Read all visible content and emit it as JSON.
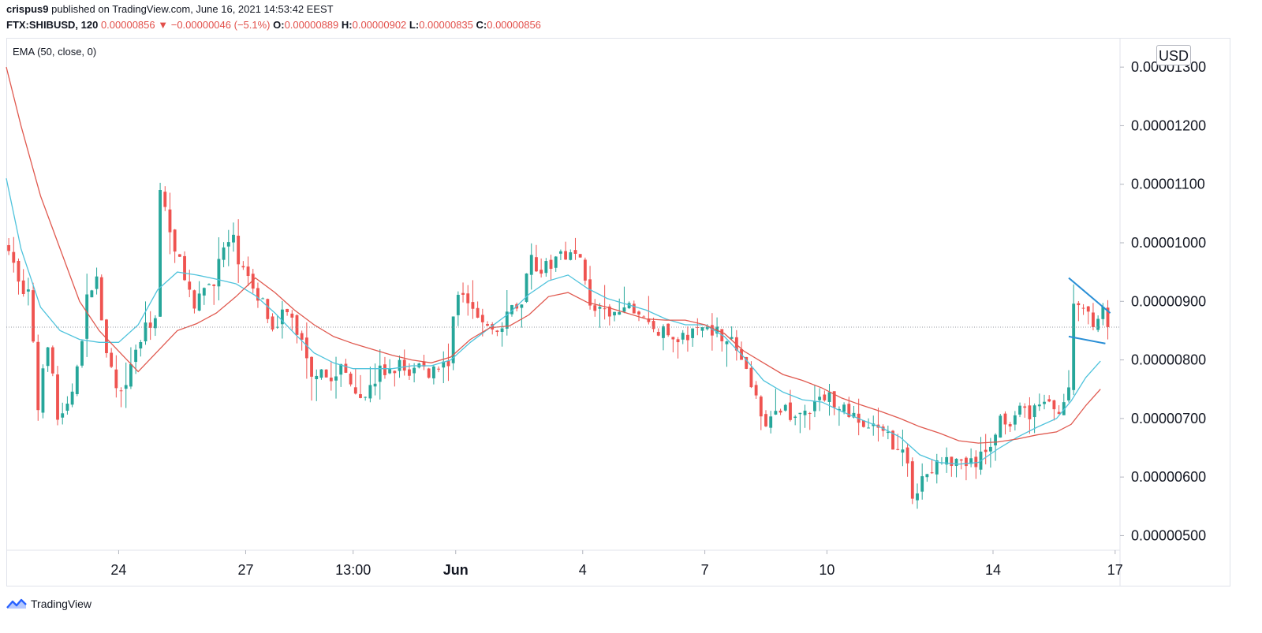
{
  "header": {
    "author": "crispus9",
    "published_text": "published on TradingView.com, June 16, 2021 14:53:42 EEST"
  },
  "symbol_bar": {
    "symbol": "FTX:SHIBUSD, 120",
    "last": "0.00000856",
    "change": "▼ −0.00000046 (−5.1%)",
    "o_label": "O:",
    "o": "0.00000889",
    "h_label": "H:",
    "h": "0.00000902",
    "l_label": "L:",
    "l": "0.00000835",
    "c_label": "C:",
    "c": "0.00000856"
  },
  "indicator_label": "EMA (50, close, 0)",
  "currency": "USD",
  "footer": {
    "brand": "TradingView"
  },
  "colors": {
    "up": "#26a69a",
    "down": "#ef5350",
    "ema_fast": "#4fc3dc",
    "ema_slow": "#e0594f",
    "pennant": "#2a8fd6",
    "price_line": "#9598a1",
    "axis_text": "#131722"
  },
  "chart_data": {
    "type": "candlestick",
    "title": "",
    "y_axis": {
      "ticks": [
        "0.00000500",
        "0.00000600",
        "0.00000700",
        "0.00000800",
        "0.00000900",
        "0.00001000",
        "0.00001100",
        "0.00001200",
        "0.00001300"
      ],
      "ylim": [
        4.75e-06,
        1.35e-05
      ]
    },
    "x_axis": {
      "xlim": [
        0,
        228
      ],
      "ticks": [
        {
          "label": "24",
          "x": 23
        },
        {
          "label": "27",
          "x": 49
        },
        {
          "label": "13:00",
          "x": 71
        },
        {
          "label": "Jun",
          "x": 92,
          "bold": true
        },
        {
          "label": "4",
          "x": 118
        },
        {
          "label": "7",
          "x": 143
        },
        {
          "label": "10",
          "x": 168
        },
        {
          "label": "14",
          "x": 202
        },
        {
          "label": "17",
          "x": 227
        }
      ]
    },
    "last_price": 8.56e-06,
    "anchors": [
      [
        0,
        1000
      ],
      [
        2,
        930
      ],
      [
        4,
        920
      ],
      [
        6,
        720
      ],
      [
        8,
        830
      ],
      [
        10,
        700
      ],
      [
        12,
        720
      ],
      [
        14,
        780
      ],
      [
        16,
        900
      ],
      [
        18,
        950
      ],
      [
        20,
        800
      ],
      [
        22,
        750
      ],
      [
        24,
        770
      ],
      [
        26,
        820
      ],
      [
        28,
        850
      ],
      [
        30,
        880
      ],
      [
        31,
        1090
      ],
      [
        32,
        1060
      ],
      [
        34,
        980
      ],
      [
        36,
        950
      ],
      [
        38,
        880
      ],
      [
        40,
        920
      ],
      [
        42,
        940
      ],
      [
        44,
        990
      ],
      [
        46,
        1000
      ],
      [
        48,
        950
      ],
      [
        50,
        920
      ],
      [
        52,
        900
      ],
      [
        54,
        860
      ],
      [
        56,
        880
      ],
      [
        58,
        870
      ],
      [
        60,
        830
      ],
      [
        62,
        780
      ],
      [
        64,
        790
      ],
      [
        66,
        760
      ],
      [
        68,
        790
      ],
      [
        70,
        770
      ],
      [
        72,
        740
      ],
      [
        74,
        750
      ],
      [
        76,
        780
      ],
      [
        78,
        780
      ],
      [
        80,
        790
      ],
      [
        82,
        780
      ],
      [
        84,
        790
      ],
      [
        86,
        780
      ],
      [
        88,
        790
      ],
      [
        90,
        800
      ],
      [
        91,
        880
      ],
      [
        93,
        920
      ],
      [
        95,
        900
      ],
      [
        97,
        860
      ],
      [
        99,
        850
      ],
      [
        101,
        850
      ],
      [
        103,
        890
      ],
      [
        105,
        900
      ],
      [
        107,
        980
      ],
      [
        109,
        950
      ],
      [
        111,
        960
      ],
      [
        113,
        990
      ],
      [
        115,
        980
      ],
      [
        117,
        970
      ],
      [
        119,
        900
      ],
      [
        121,
        880
      ],
      [
        123,
        870
      ],
      [
        125,
        880
      ],
      [
        127,
        890
      ],
      [
        129,
        880
      ],
      [
        131,
        860
      ],
      [
        133,
        850
      ],
      [
        135,
        840
      ],
      [
        137,
        840
      ],
      [
        139,
        840
      ],
      [
        141,
        850
      ],
      [
        143,
        860
      ],
      [
        145,
        850
      ],
      [
        147,
        840
      ],
      [
        149,
        820
      ],
      [
        151,
        780
      ],
      [
        153,
        730
      ],
      [
        155,
        700
      ],
      [
        157,
        700
      ],
      [
        159,
        720
      ],
      [
        161,
        700
      ],
      [
        163,
        710
      ],
      [
        165,
        720
      ],
      [
        167,
        740
      ],
      [
        169,
        730
      ],
      [
        171,
        720
      ],
      [
        173,
        700
      ],
      [
        175,
        690
      ],
      [
        177,
        680
      ],
      [
        179,
        670
      ],
      [
        181,
        660
      ],
      [
        183,
        650
      ],
      [
        185,
        570
      ],
      [
        187,
        600
      ],
      [
        189,
        610
      ],
      [
        191,
        630
      ],
      [
        193,
        620
      ],
      [
        195,
        630
      ],
      [
        197,
        620
      ],
      [
        199,
        630
      ],
      [
        201,
        660
      ],
      [
        203,
        700
      ],
      [
        205,
        700
      ],
      [
        207,
        710
      ],
      [
        209,
        710
      ],
      [
        211,
        730
      ],
      [
        213,
        720
      ],
      [
        215,
        720
      ],
      [
        217,
        740
      ],
      [
        218,
        900
      ],
      [
        220,
        890
      ],
      [
        222,
        870
      ],
      [
        224,
        880
      ],
      [
        225,
        856
      ]
    ],
    "ema_fast": [
      [
        0,
        1110
      ],
      [
        3,
        990
      ],
      [
        7,
        890
      ],
      [
        11,
        850
      ],
      [
        15,
        835
      ],
      [
        19,
        830
      ],
      [
        23,
        830
      ],
      [
        27,
        860
      ],
      [
        31,
        920
      ],
      [
        35,
        950
      ],
      [
        39,
        945
      ],
      [
        43,
        938
      ],
      [
        47,
        930
      ],
      [
        51,
        910
      ],
      [
        55,
        880
      ],
      [
        59,
        845
      ],
      [
        63,
        812
      ],
      [
        67,
        795
      ],
      [
        71,
        785
      ],
      [
        75,
        785
      ],
      [
        79,
        785
      ],
      [
        83,
        790
      ],
      [
        87,
        790
      ],
      [
        91,
        800
      ],
      [
        95,
        830
      ],
      [
        99,
        855
      ],
      [
        103,
        880
      ],
      [
        107,
        912
      ],
      [
        111,
        935
      ],
      [
        115,
        945
      ],
      [
        119,
        922
      ],
      [
        123,
        905
      ],
      [
        127,
        895
      ],
      [
        131,
        885
      ],
      [
        135,
        870
      ],
      [
        139,
        860
      ],
      [
        143,
        860
      ],
      [
        147,
        840
      ],
      [
        151,
        805
      ],
      [
        155,
        765
      ],
      [
        159,
        745
      ],
      [
        163,
        732
      ],
      [
        167,
        728
      ],
      [
        171,
        712
      ],
      [
        175,
        698
      ],
      [
        179,
        685
      ],
      [
        183,
        668
      ],
      [
        187,
        638
      ],
      [
        191,
        625
      ],
      [
        195,
        622
      ],
      [
        199,
        625
      ],
      [
        203,
        648
      ],
      [
        207,
        668
      ],
      [
        211,
        685
      ],
      [
        215,
        700
      ],
      [
        218,
        730
      ],
      [
        221,
        770
      ],
      [
        224,
        798
      ]
    ],
    "ema_slow": [
      [
        0,
        1300
      ],
      [
        3,
        1200
      ],
      [
        7,
        1080
      ],
      [
        11,
        990
      ],
      [
        15,
        900
      ],
      [
        19,
        850
      ],
      [
        23,
        815
      ],
      [
        27,
        780
      ],
      [
        31,
        815
      ],
      [
        35,
        850
      ],
      [
        39,
        862
      ],
      [
        43,
        880
      ],
      [
        47,
        908
      ],
      [
        51,
        940
      ],
      [
        55,
        915
      ],
      [
        59,
        885
      ],
      [
        63,
        860
      ],
      [
        67,
        840
      ],
      [
        71,
        828
      ],
      [
        75,
        818
      ],
      [
        79,
        808
      ],
      [
        83,
        800
      ],
      [
        87,
        795
      ],
      [
        91,
        805
      ],
      [
        95,
        835
      ],
      [
        99,
        855
      ],
      [
        103,
        858
      ],
      [
        107,
        877
      ],
      [
        111,
        908
      ],
      [
        115,
        915
      ],
      [
        119,
        898
      ],
      [
        123,
        890
      ],
      [
        127,
        880
      ],
      [
        131,
        870
      ],
      [
        135,
        868
      ],
      [
        139,
        868
      ],
      [
        143,
        860
      ],
      [
        147,
        845
      ],
      [
        151,
        815
      ],
      [
        155,
        795
      ],
      [
        159,
        775
      ],
      [
        163,
        765
      ],
      [
        167,
        752
      ],
      [
        171,
        735
      ],
      [
        175,
        723
      ],
      [
        179,
        712
      ],
      [
        183,
        700
      ],
      [
        187,
        686
      ],
      [
        191,
        675
      ],
      [
        195,
        662
      ],
      [
        199,
        658
      ],
      [
        203,
        660
      ],
      [
        207,
        665
      ],
      [
        211,
        672
      ],
      [
        215,
        677
      ],
      [
        218,
        690
      ],
      [
        221,
        722
      ],
      [
        224,
        750
      ]
    ],
    "pennant": {
      "upper": [
        [
          217.5,
          940
        ],
        [
          226,
          880
        ]
      ],
      "lower": [
        [
          217.5,
          840
        ],
        [
          225,
          828
        ]
      ]
    },
    "note": "anchors/ema values are in units of 1e-8 USD (e.g. 900 = 0.00000900)"
  }
}
